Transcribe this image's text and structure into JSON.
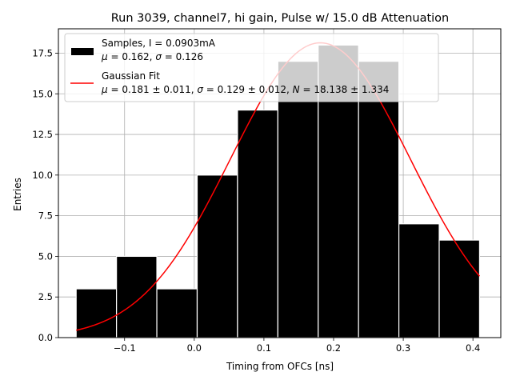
{
  "chart_data": {
    "type": "bar",
    "title": "Run 3039, channel7, hi gain, Pulse w/ 15.0 dB Attenuation",
    "xlabel": "Timing from OFCs [ns]",
    "ylabel": "Entries",
    "xlim": [
      -0.195,
      0.44
    ],
    "ylim": [
      0,
      19.0
    ],
    "xticks": [
      -0.1,
      0.0,
      0.1,
      0.2,
      0.3,
      0.4
    ],
    "xtick_labels": [
      "−0.1",
      "0.0",
      "0.1",
      "0.2",
      "0.3",
      "0.4"
    ],
    "yticks": [
      0.0,
      2.5,
      5.0,
      7.5,
      10.0,
      12.5,
      15.0,
      17.5
    ],
    "ytick_labels": [
      "0.0",
      "2.5",
      "5.0",
      "7.5",
      "10.0",
      "12.5",
      "15.0",
      "17.5"
    ],
    "grid": true,
    "bins": [
      {
        "x0": -0.1695,
        "x1": -0.1116,
        "count": 3
      },
      {
        "x0": -0.1116,
        "x1": -0.0537,
        "count": 5
      },
      {
        "x0": -0.0537,
        "x1": 0.0042,
        "count": 3
      },
      {
        "x0": 0.0042,
        "x1": 0.0621,
        "count": 10
      },
      {
        "x0": 0.0621,
        "x1": 0.12,
        "count": 14
      },
      {
        "x0": 0.12,
        "x1": 0.1779,
        "count": 17
      },
      {
        "x0": 0.1779,
        "x1": 0.2358,
        "count": 18
      },
      {
        "x0": 0.2358,
        "x1": 0.2937,
        "count": 17
      },
      {
        "x0": 0.2937,
        "x1": 0.3516,
        "count": 7
      },
      {
        "x0": 0.3516,
        "x1": 0.4095,
        "count": 6
      }
    ],
    "fit": {
      "mu": 0.181,
      "sigma": 0.129,
      "N": 18.138,
      "x_range": [
        -0.1695,
        0.4095
      ]
    },
    "legend": {
      "placement": "top-left",
      "entries": [
        {
          "line1": "Samples, I = 0.0903mA",
          "line2": "μ = 0.162, σ = 0.126",
          "color": "#000000",
          "kind": "patch"
        },
        {
          "line1": "Gaussian Fit",
          "line2": "μ = 0.181 ± 0.011, σ = 0.129 ± 0.012, N = 18.138 ± 1.334",
          "color": "#ff0000",
          "kind": "line"
        }
      ]
    },
    "colors": {
      "bar_fill": "#000000",
      "bar_edge": "#ffffff",
      "fit_line": "#ff0000",
      "grid": "#b0b0b0"
    }
  }
}
